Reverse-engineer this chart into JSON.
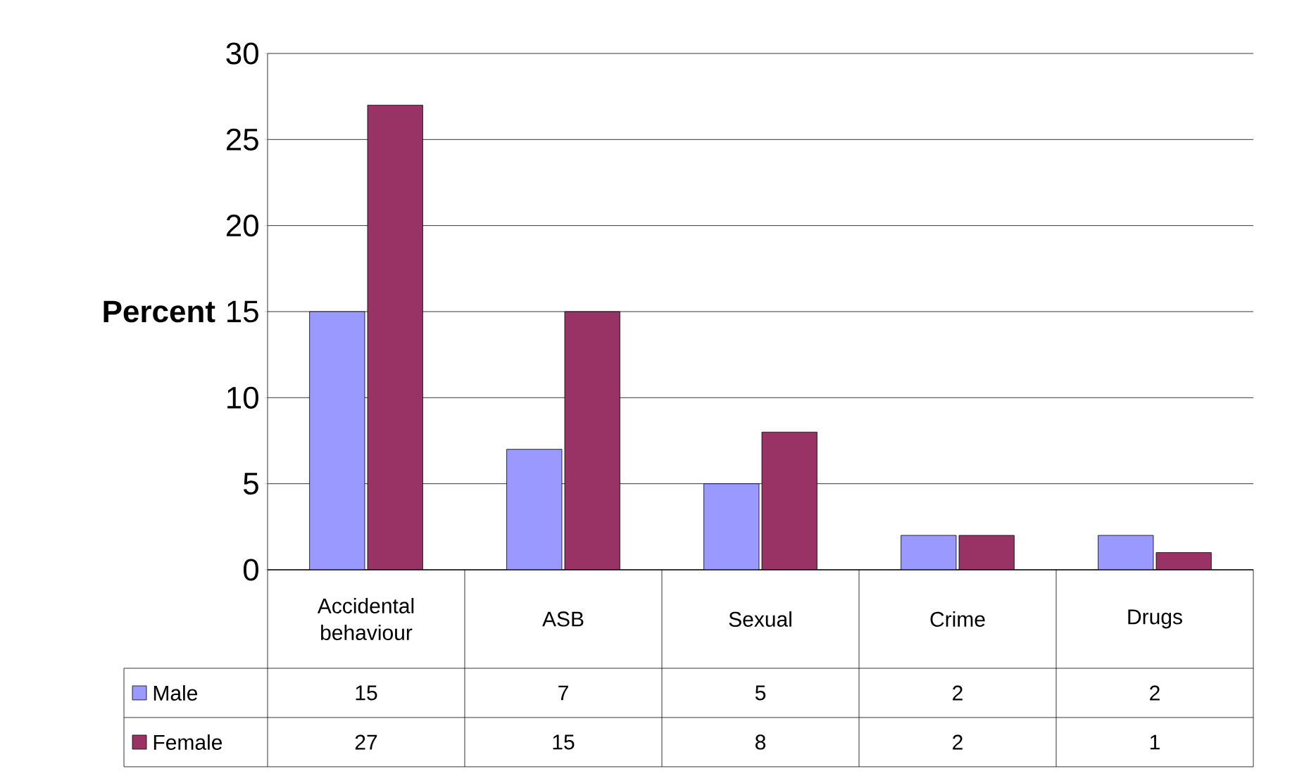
{
  "chart_data": {
    "type": "bar",
    "ylabel": "Percent",
    "categories": [
      "Accidental behaviour",
      "ASB",
      "Sexual",
      "Crime",
      "Drugs"
    ],
    "series": [
      {
        "name": "Male",
        "color": "#9999ff",
        "values": [
          15,
          7,
          5,
          2,
          2
        ]
      },
      {
        "name": "Female",
        "color": "#993366",
        "values": [
          27,
          15,
          8,
          2,
          1
        ]
      }
    ],
    "ylim": [
      0,
      30
    ],
    "yticks": [
      0,
      5,
      10,
      15,
      20,
      25,
      30
    ],
    "grid": "y",
    "legend": "bottom left",
    "data_labels": true
  }
}
